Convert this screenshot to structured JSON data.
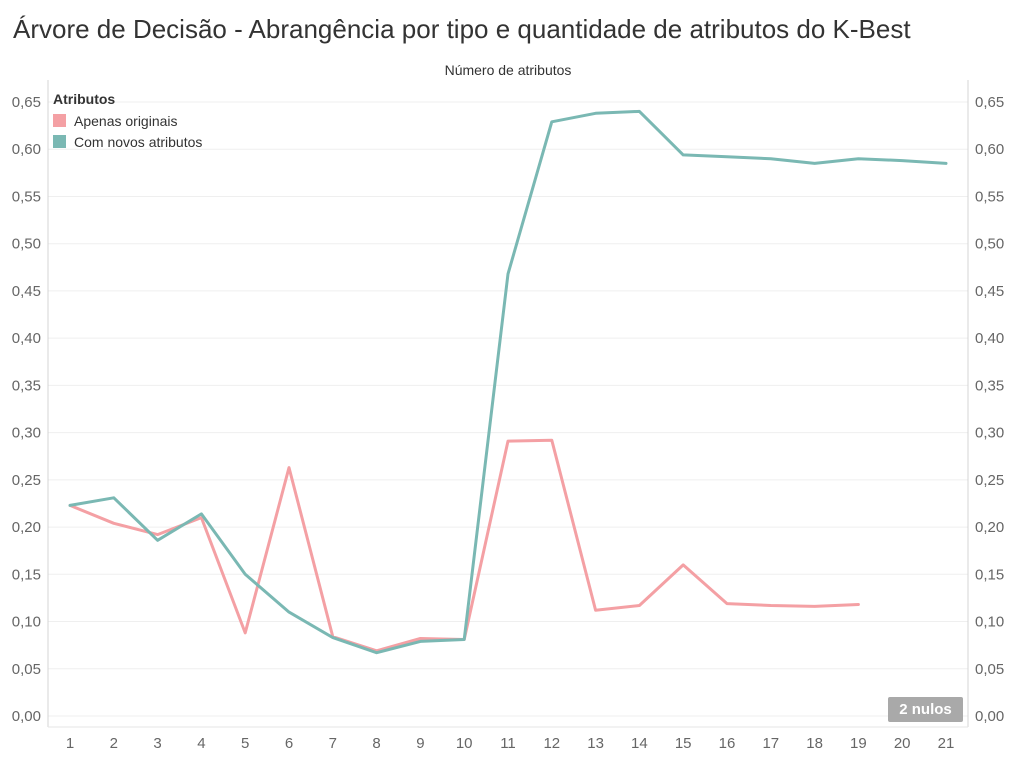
{
  "title": "Árvore de Decisão - Abrangência por tipo e quantidade de atributos do K-Best",
  "legend": {
    "title": "Atributos",
    "placement": "top-left",
    "items": [
      {
        "label": "Apenas originais",
        "color": "#f4a0a4"
      },
      {
        "label": "Com novos atributos",
        "color": "#7ab8b3"
      }
    ]
  },
  "nulls_badge": "2 nulos",
  "chart_data": {
    "type": "line",
    "title": "Árvore de Decisão - Abrangência por tipo e quantidade de atributos do K-Best",
    "xlabel": "Número de atributos",
    "ylabel": "",
    "x": [
      1,
      2,
      3,
      4,
      5,
      6,
      7,
      8,
      9,
      10,
      11,
      12,
      13,
      14,
      15,
      16,
      17,
      18,
      19,
      20,
      21
    ],
    "xlim": [
      1,
      21
    ],
    "ylim": [
      0,
      0.65
    ],
    "yticks": [
      "0,00",
      "0,05",
      "0,10",
      "0,15",
      "0,20",
      "0,25",
      "0,30",
      "0,35",
      "0,40",
      "0,45",
      "0,50",
      "0,55",
      "0,60",
      "0,65"
    ],
    "grid": true,
    "series": [
      {
        "name": "Apenas originais",
        "color": "#f4a0a4",
        "values": [
          0.223,
          0.204,
          0.192,
          0.21,
          0.088,
          0.263,
          0.084,
          0.069,
          0.082,
          0.081,
          0.291,
          0.292,
          0.112,
          0.117,
          0.16,
          0.119,
          0.117,
          0.116,
          0.118,
          null,
          null
        ]
      },
      {
        "name": "Com novos atributos",
        "color": "#7ab8b3",
        "values": [
          0.223,
          0.231,
          0.186,
          0.214,
          0.15,
          0.11,
          0.083,
          0.067,
          0.079,
          0.081,
          0.468,
          0.629,
          0.638,
          0.64,
          0.594,
          0.592,
          0.59,
          0.585,
          0.59,
          0.588,
          0.585
        ]
      }
    ]
  }
}
